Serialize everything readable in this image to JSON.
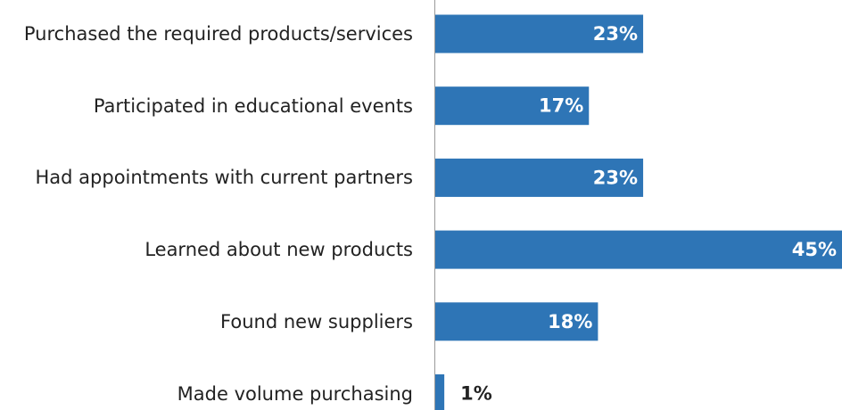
{
  "chart_data": {
    "type": "bar",
    "orientation": "horizontal",
    "categories": [
      "Purchased the required products/services",
      "Participated in educational events",
      "Had appointments with current partners",
      "Learned about new products",
      "Found new suppliers",
      "Made volume purchasing"
    ],
    "values": [
      23,
      17,
      23,
      45,
      18,
      1
    ],
    "value_labels": [
      "23%",
      "17%",
      "23%",
      "45%",
      "18%",
      "1%"
    ],
    "color": "#2e75b6",
    "xlim": [
      0,
      45
    ]
  }
}
